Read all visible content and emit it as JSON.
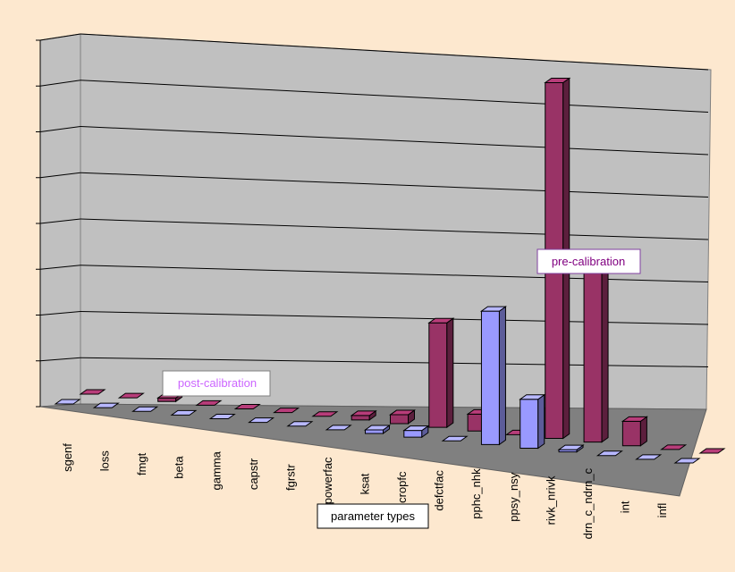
{
  "chart_data": {
    "type": "bar",
    "xlabel": "parameter types",
    "ylabel": "",
    "title": "",
    "ylim": [
      0,
      8
    ],
    "grid": true,
    "categories": [
      "sgenf",
      "loss",
      "fmgt",
      "beta",
      "gamma",
      "capstr",
      "fgrstr",
      "powerfac",
      "ksat",
      "cropfc",
      "defctfac",
      "pphc_nhk",
      "ppsy_nsy",
      "rivk_nrivk",
      "drn_c_ndrn_c",
      "int",
      "infl"
    ],
    "series": [
      {
        "name": "post-calibration",
        "color": "#9999ff",
        "values": [
          0,
          0,
          0,
          0,
          0,
          0,
          0,
          0,
          0.08,
          0.15,
          0,
          3.0,
          1.1,
          0.05,
          0,
          0,
          0
        ]
      },
      {
        "name": "pre-calibration",
        "color": "#993366",
        "values": [
          0,
          0,
          0.08,
          0,
          0,
          0,
          0,
          0.1,
          0.2,
          2.35,
          0.38,
          0,
          8.0,
          3.95,
          0.55,
          0,
          0
        ]
      }
    ]
  }
}
